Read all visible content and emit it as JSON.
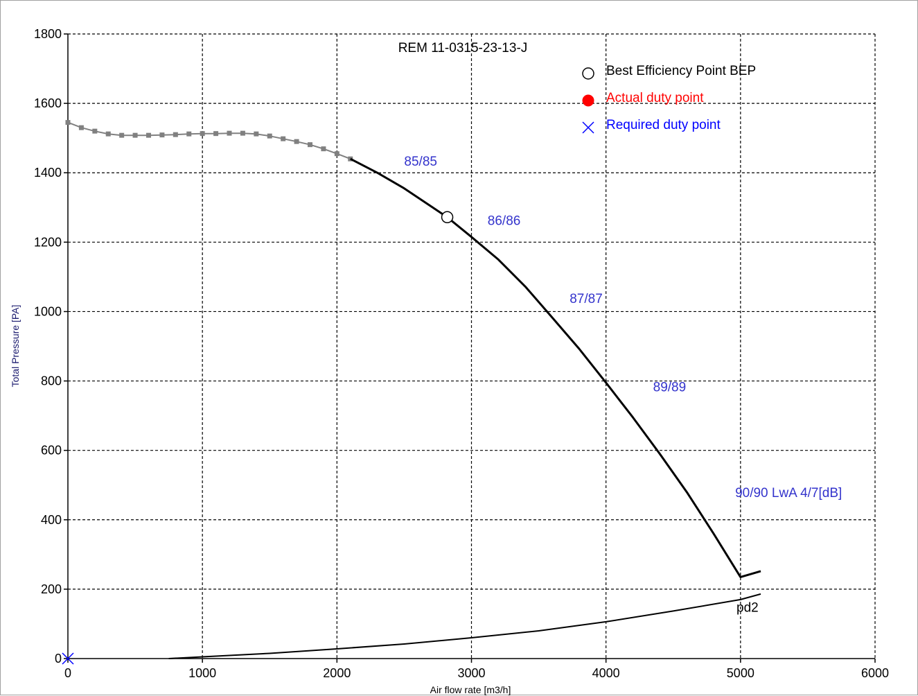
{
  "chart_data": {
    "type": "line",
    "title": "REM 11-0315-23-13-J",
    "xlabel": "Air flow rate [m3/h]",
    "ylabel": "Total Pressure [PA]",
    "xlim": [
      0,
      6000
    ],
    "ylim": [
      0,
      1800
    ],
    "x_ticks": [
      0,
      1000,
      2000,
      3000,
      4000,
      5000,
      6000
    ],
    "y_ticks": [
      0,
      200,
      400,
      600,
      800,
      1000,
      1200,
      1400,
      1600,
      1800
    ],
    "grid": true,
    "legend": {
      "placement": "top-right",
      "entries": [
        {
          "label": "Best Efficiency Point BEP",
          "marker": "open-circle",
          "color": "#000000"
        },
        {
          "label": "Actual duty point",
          "marker": "filled-circle",
          "color": "#ff0000"
        },
        {
          "label": "Required duty point",
          "marker": "x",
          "color": "#0000ff"
        }
      ]
    },
    "series": [
      {
        "name": "",
        "style": "dotted-gray",
        "color": "#808080",
        "x": [
          0,
          100,
          200,
          300,
          400,
          500,
          600,
          700,
          800,
          900,
          1000,
          1100,
          1200,
          1300,
          1400,
          1500,
          1600,
          1700,
          1800,
          1900,
          2000,
          2100
        ],
        "y": [
          1545,
          1530,
          1520,
          1512,
          1508,
          1508,
          1508,
          1509,
          1510,
          1512,
          1513,
          1513,
          1514,
          1514,
          1512,
          1506,
          1498,
          1490,
          1481,
          1469,
          1455,
          1440
        ]
      },
      {
        "name": "",
        "style": "solid",
        "color": "#000000",
        "x": [
          2100,
          2300,
          2500,
          2700,
          2820,
          3000,
          3200,
          3400,
          3600,
          3800,
          4000,
          4200,
          4400,
          4600,
          4800,
          5000,
          5150
        ],
        "y": [
          1440,
          1400,
          1355,
          1303,
          1272,
          1215,
          1150,
          1072,
          983,
          893,
          795,
          695,
          590,
          480,
          360,
          235,
          252
        ]
      },
      {
        "name": "pd2",
        "style": "solid",
        "color": "#000000",
        "x": [
          750,
          1000,
          1500,
          2000,
          2500,
          3000,
          3500,
          4000,
          4500,
          5000,
          5150
        ],
        "y": [
          0,
          5,
          15,
          28,
          42,
          60,
          80,
          106,
          137,
          170,
          186
        ]
      }
    ],
    "points": {
      "bep": {
        "x": 2820,
        "y": 1272
      },
      "required_duty": {
        "x": 0,
        "y": 0
      }
    },
    "annotations": [
      {
        "text": "85/85",
        "x": 2500,
        "y": 1420,
        "color": "#3333cc"
      },
      {
        "text": "86/86",
        "x": 3120,
        "y": 1250,
        "color": "#3333cc"
      },
      {
        "text": "87/87",
        "x": 3730,
        "y": 1025,
        "color": "#3333cc"
      },
      {
        "text": "89/89",
        "x": 4350,
        "y": 770,
        "color": "#3333cc"
      },
      {
        "text": "90/90 LwA 4/7[dB]",
        "x": 4960,
        "y": 465,
        "color": "#3333cc"
      },
      {
        "text": "pd2",
        "x": 4970,
        "y": 135,
        "color": "#000000"
      }
    ]
  }
}
